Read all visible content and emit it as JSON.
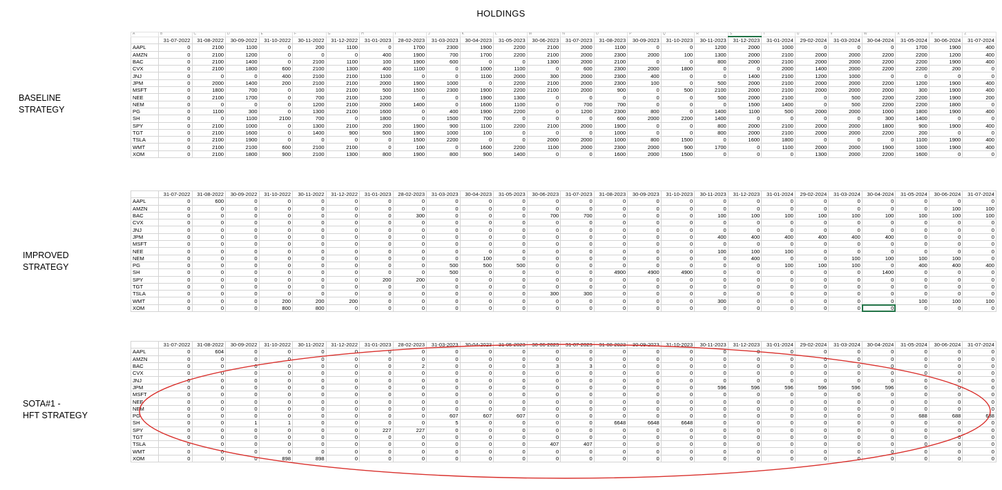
{
  "page_title": "HOLDINGS",
  "labels": {
    "baseline": [
      "BASELINE",
      "STRATEGY"
    ],
    "improved": [
      "IMPROVED",
      "STRATEGY"
    ],
    "sota": [
      "SOTA#1 -",
      "HFT STRATEGY"
    ]
  },
  "dates": [
    "31-07-2022",
    "31-08-2022",
    "30-09-2022",
    "31-10-2022",
    "30-11-2022",
    "31-12-2022",
    "31-01-2023",
    "28-02-2023",
    "31-03-2023",
    "30-04-2023",
    "31-05-2023",
    "30-06-2023",
    "31-07-2023",
    "31-08-2023",
    "30-09-2023",
    "31-10-2023",
    "30-11-2023",
    "31-12-2023",
    "31-01-2024",
    "29-02-2024",
    "31-03-2024",
    "30-04-2024",
    "31-05-2024",
    "30-06-2024",
    "31-07-2024"
  ],
  "tickers": [
    "AAPL",
    "AMZN",
    "BAC",
    "CVX",
    "JNJ",
    "JPM",
    "MSFT",
    "NEE",
    "NEM",
    "PG",
    "SH",
    "SPY",
    "TGT",
    "TSLA",
    "WMT",
    "XOM"
  ],
  "column_letters": [
    "A",
    "B",
    "C",
    "D",
    "E",
    "F",
    "G",
    "H",
    "I",
    "J",
    "K",
    "L",
    "M",
    "N",
    "O",
    "P",
    "Q",
    "R",
    "S",
    "T",
    "U",
    "V",
    "W",
    "X",
    "Y",
    "Z"
  ],
  "tables": {
    "baseline": [
      [
        "0",
        "2100",
        "1100",
        "0",
        "200",
        "1100",
        "0",
        "1700",
        "2300",
        "1900",
        "2200",
        "2100",
        "2000",
        "1100",
        "0",
        "0",
        "1200",
        "2000",
        "1000",
        "0",
        "0",
        "0",
        "1700",
        "1900",
        "400"
      ],
      [
        "0",
        "2100",
        "1200",
        "0",
        "0",
        "0",
        "400",
        "1900",
        "700",
        "1700",
        "2200",
        "2100",
        "2000",
        "2300",
        "2000",
        "100",
        "1300",
        "2000",
        "2100",
        "2000",
        "2000",
        "2200",
        "2200",
        "1200",
        "400"
      ],
      [
        "0",
        "2100",
        "1400",
        "0",
        "2100",
        "1100",
        "100",
        "1900",
        "600",
        "0",
        "0",
        "1300",
        "2000",
        "2100",
        "0",
        "0",
        "800",
        "2000",
        "2100",
        "2000",
        "2000",
        "2200",
        "2200",
        "1900",
        "400"
      ],
      [
        "0",
        "2100",
        "1800",
        "600",
        "2100",
        "1300",
        "400",
        "1100",
        "0",
        "1000",
        "1100",
        "0",
        "600",
        "2300",
        "2000",
        "1800",
        "0",
        "0",
        "2000",
        "1400",
        "2000",
        "2200",
        "2200",
        "200",
        "0"
      ],
      [
        "0",
        "0",
        "0",
        "400",
        "2100",
        "2100",
        "1100",
        "0",
        "0",
        "1100",
        "2000",
        "300",
        "2000",
        "2300",
        "400",
        "0",
        "0",
        "1400",
        "2100",
        "1200",
        "1000",
        "0",
        "0",
        "0",
        "0"
      ],
      [
        "0",
        "2000",
        "1400",
        "200",
        "2100",
        "2100",
        "2000",
        "1900",
        "1000",
        "0",
        "2200",
        "2100",
        "2000",
        "2300",
        "100",
        "0",
        "500",
        "2000",
        "2100",
        "2000",
        "2000",
        "2200",
        "1200",
        "1900",
        "400"
      ],
      [
        "0",
        "1800",
        "700",
        "0",
        "100",
        "2100",
        "500",
        "1500",
        "2300",
        "1900",
        "2200",
        "2100",
        "2000",
        "900",
        "0",
        "500",
        "2100",
        "2000",
        "2100",
        "2000",
        "2000",
        "2000",
        "300",
        "1900",
        "400"
      ],
      [
        "0",
        "2100",
        "1700",
        "0",
        "700",
        "2100",
        "1200",
        "0",
        "0",
        "1900",
        "1300",
        "0",
        "0",
        "0",
        "0",
        "0",
        "500",
        "2000",
        "2100",
        "0",
        "500",
        "2200",
        "2200",
        "1900",
        "200"
      ],
      [
        "0",
        "0",
        "0",
        "0",
        "1200",
        "2100",
        "2000",
        "1400",
        "0",
        "1600",
        "1100",
        "0",
        "700",
        "700",
        "0",
        "0",
        "0",
        "1500",
        "1400",
        "0",
        "500",
        "2200",
        "2200",
        "1800",
        "0"
      ],
      [
        "0",
        "1100",
        "300",
        "0",
        "1300",
        "2100",
        "1600",
        "0",
        "400",
        "1900",
        "2200",
        "0",
        "1200",
        "2300",
        "800",
        "0",
        "1400",
        "1100",
        "500",
        "2000",
        "2000",
        "1000",
        "1800",
        "1900",
        "400"
      ],
      [
        "0",
        "0",
        "1100",
        "2100",
        "700",
        "0",
        "1800",
        "0",
        "1500",
        "700",
        "0",
        "0",
        "0",
        "600",
        "2000",
        "2200",
        "1400",
        "0",
        "0",
        "0",
        "0",
        "300",
        "1400",
        "0",
        "0"
      ],
      [
        "0",
        "2100",
        "1000",
        "0",
        "1300",
        "2100",
        "200",
        "1900",
        "900",
        "1100",
        "2200",
        "2100",
        "2000",
        "1900",
        "0",
        "0",
        "800",
        "2000",
        "2100",
        "2000",
        "2000",
        "1800",
        "900",
        "1900",
        "400"
      ],
      [
        "0",
        "2100",
        "1600",
        "0",
        "1400",
        "900",
        "500",
        "1900",
        "1000",
        "100",
        "0",
        "0",
        "0",
        "1000",
        "0",
        "0",
        "800",
        "2000",
        "2100",
        "2000",
        "2000",
        "2200",
        "200",
        "0",
        "0"
      ],
      [
        "0",
        "2100",
        "1900",
        "0",
        "0",
        "0",
        "0",
        "1500",
        "2200",
        "0",
        "0",
        "2000",
        "2000",
        "1000",
        "800",
        "1500",
        "0",
        "1600",
        "1800",
        "0",
        "0",
        "0",
        "1100",
        "1900",
        "400"
      ],
      [
        "0",
        "2100",
        "2100",
        "600",
        "2100",
        "2100",
        "0",
        "100",
        "0",
        "1600",
        "2200",
        "1100",
        "2000",
        "2300",
        "2000",
        "900",
        "1700",
        "0",
        "1100",
        "2000",
        "2000",
        "1900",
        "1000",
        "1900",
        "400"
      ],
      [
        "0",
        "2100",
        "1800",
        "900",
        "2100",
        "1300",
        "800",
        "1900",
        "800",
        "900",
        "1400",
        "0",
        "0",
        "1600",
        "2000",
        "1500",
        "0",
        "0",
        "0",
        "1300",
        "2000",
        "2200",
        "1600",
        "0",
        "0"
      ]
    ],
    "improved": [
      [
        "0",
        "600",
        "0",
        "0",
        "0",
        "0",
        "0",
        "0",
        "0",
        "0",
        "0",
        "0",
        "0",
        "0",
        "0",
        "0",
        "0",
        "0",
        "0",
        "0",
        "0",
        "0",
        "0",
        "0",
        "0"
      ],
      [
        "0",
        "0",
        "0",
        "0",
        "0",
        "0",
        "0",
        "0",
        "0",
        "0",
        "0",
        "0",
        "0",
        "0",
        "0",
        "0",
        "0",
        "0",
        "0",
        "0",
        "0",
        "0",
        "0",
        "100",
        "100"
      ],
      [
        "0",
        "0",
        "0",
        "0",
        "0",
        "0",
        "0",
        "300",
        "0",
        "0",
        "0",
        "700",
        "700",
        "0",
        "0",
        "0",
        "100",
        "100",
        "100",
        "100",
        "100",
        "100",
        "100",
        "100",
        "100"
      ],
      [
        "0",
        "0",
        "0",
        "0",
        "0",
        "0",
        "0",
        "0",
        "0",
        "0",
        "0",
        "0",
        "0",
        "0",
        "0",
        "0",
        "0",
        "0",
        "0",
        "0",
        "0",
        "0",
        "0",
        "0",
        "0"
      ],
      [
        "0",
        "0",
        "0",
        "0",
        "0",
        "0",
        "0",
        "0",
        "0",
        "0",
        "0",
        "0",
        "0",
        "0",
        "0",
        "0",
        "0",
        "0",
        "0",
        "0",
        "0",
        "0",
        "0",
        "0",
        "0"
      ],
      [
        "0",
        "0",
        "0",
        "0",
        "0",
        "0",
        "0",
        "0",
        "0",
        "0",
        "0",
        "0",
        "0",
        "0",
        "0",
        "0",
        "400",
        "400",
        "400",
        "400",
        "400",
        "400",
        "0",
        "0",
        "0"
      ],
      [
        "0",
        "0",
        "0",
        "0",
        "0",
        "0",
        "0",
        "0",
        "0",
        "0",
        "0",
        "0",
        "0",
        "0",
        "0",
        "0",
        "0",
        "0",
        "0",
        "0",
        "0",
        "0",
        "0",
        "0",
        "0"
      ],
      [
        "0",
        "0",
        "0",
        "0",
        "0",
        "0",
        "0",
        "0",
        "0",
        "0",
        "0",
        "0",
        "0",
        "0",
        "0",
        "0",
        "100",
        "100",
        "100",
        "0",
        "0",
        "0",
        "0",
        "0",
        "0"
      ],
      [
        "0",
        "0",
        "0",
        "0",
        "0",
        "0",
        "0",
        "0",
        "0",
        "100",
        "0",
        "0",
        "0",
        "0",
        "0",
        "0",
        "0",
        "400",
        "0",
        "0",
        "100",
        "100",
        "100",
        "100",
        "0"
      ],
      [
        "0",
        "0",
        "0",
        "0",
        "0",
        "0",
        "0",
        "0",
        "500",
        "500",
        "500",
        "0",
        "0",
        "0",
        "0",
        "0",
        "0",
        "0",
        "100",
        "100",
        "100",
        "0",
        "400",
        "400",
        "400"
      ],
      [
        "0",
        "0",
        "0",
        "0",
        "0",
        "0",
        "0",
        "0",
        "500",
        "0",
        "0",
        "0",
        "0",
        "4900",
        "4900",
        "4900",
        "0",
        "0",
        "0",
        "0",
        "0",
        "1400",
        "0",
        "0",
        "0"
      ],
      [
        "0",
        "0",
        "0",
        "0",
        "0",
        "0",
        "200",
        "200",
        "0",
        "0",
        "0",
        "0",
        "0",
        "0",
        "0",
        "0",
        "0",
        "0",
        "0",
        "0",
        "0",
        "0",
        "0",
        "0",
        "0"
      ],
      [
        "0",
        "0",
        "0",
        "0",
        "0",
        "0",
        "0",
        "0",
        "0",
        "0",
        "0",
        "0",
        "0",
        "0",
        "0",
        "0",
        "0",
        "0",
        "0",
        "0",
        "0",
        "0",
        "0",
        "0",
        "0"
      ],
      [
        "0",
        "0",
        "0",
        "0",
        "0",
        "0",
        "0",
        "0",
        "0",
        "0",
        "0",
        "300",
        "300",
        "0",
        "0",
        "0",
        "0",
        "0",
        "0",
        "0",
        "0",
        "0",
        "0",
        "0",
        "0"
      ],
      [
        "0",
        "0",
        "0",
        "200",
        "200",
        "200",
        "0",
        "0",
        "0",
        "0",
        "0",
        "0",
        "0",
        "0",
        "0",
        "0",
        "300",
        "0",
        "0",
        "0",
        "0",
        "0",
        "100",
        "100",
        "100"
      ],
      [
        "0",
        "0",
        "0",
        "800",
        "800",
        "0",
        "0",
        "0",
        "0",
        "0",
        "0",
        "0",
        "0",
        "0",
        "0",
        "0",
        "0",
        "0",
        "0",
        "0",
        "0",
        "0",
        "0",
        "0",
        "0"
      ]
    ],
    "sota": [
      [
        "0",
        "604",
        "0",
        "0",
        "0",
        "0",
        "0",
        "0",
        "0",
        "0",
        "0",
        "0",
        "0",
        "0",
        "0",
        "0",
        "0",
        "0",
        "0",
        "0",
        "0",
        "0",
        "0",
        "0",
        "0"
      ],
      [
        "0",
        "0",
        "0",
        "0",
        "0",
        "0",
        "0",
        "0",
        "0",
        "0",
        "0",
        "0",
        "0",
        "0",
        "0",
        "0",
        "0",
        "0",
        "0",
        "0",
        "0",
        "0",
        "0",
        "0",
        "0"
      ],
      [
        "0",
        "0",
        "0",
        "0",
        "0",
        "0",
        "0",
        "2",
        "0",
        "0",
        "0",
        "3",
        "3",
        "0",
        "0",
        "0",
        "0",
        "0",
        "0",
        "0",
        "0",
        "0",
        "0",
        "0",
        "0"
      ],
      [
        "0",
        "0",
        "0",
        "0",
        "0",
        "0",
        "0",
        "0",
        "0",
        "0",
        "0",
        "0",
        "0",
        "0",
        "0",
        "0",
        "0",
        "0",
        "0",
        "0",
        "0",
        "0",
        "0",
        "0",
        "0"
      ],
      [
        "0",
        "0",
        "0",
        "0",
        "0",
        "0",
        "0",
        "0",
        "0",
        "0",
        "0",
        "0",
        "0",
        "0",
        "0",
        "0",
        "0",
        "0",
        "0",
        "0",
        "0",
        "0",
        "0",
        "0",
        "0"
      ],
      [
        "0",
        "0",
        "0",
        "0",
        "0",
        "0",
        "0",
        "0",
        "0",
        "0",
        "0",
        "0",
        "0",
        "0",
        "0",
        "0",
        "596",
        "596",
        "596",
        "596",
        "596",
        "596",
        "0",
        "0",
        "0"
      ],
      [
        "0",
        "0",
        "0",
        "0",
        "0",
        "0",
        "0",
        "0",
        "0",
        "0",
        "0",
        "0",
        "0",
        "0",
        "0",
        "0",
        "0",
        "0",
        "0",
        "0",
        "0",
        "0",
        "0",
        "0",
        "0"
      ],
      [
        "0",
        "0",
        "0",
        "0",
        "0",
        "0",
        "0",
        "0",
        "0",
        "0",
        "0",
        "0",
        "0",
        "0",
        "0",
        "0",
        "0",
        "0",
        "0",
        "0",
        "0",
        "0",
        "0",
        "0",
        "0"
      ],
      [
        "0",
        "0",
        "0",
        "0",
        "0",
        "0",
        "0",
        "0",
        "0",
        "0",
        "0",
        "0",
        "0",
        "0",
        "0",
        "0",
        "0",
        "0",
        "0",
        "0",
        "0",
        "0",
        "0",
        "0",
        "0"
      ],
      [
        "0",
        "0",
        "0",
        "0",
        "0",
        "0",
        "0",
        "0",
        "607",
        "607",
        "607",
        "0",
        "0",
        "0",
        "0",
        "0",
        "0",
        "0",
        "0",
        "0",
        "0",
        "0",
        "688",
        "688",
        "688"
      ],
      [
        "0",
        "0",
        "1",
        "1",
        "0",
        "0",
        "0",
        "0",
        "5",
        "0",
        "0",
        "0",
        "0",
        "6648",
        "6648",
        "6648",
        "0",
        "0",
        "0",
        "0",
        "0",
        "0",
        "0",
        "0",
        "0"
      ],
      [
        "0",
        "0",
        "0",
        "0",
        "0",
        "0",
        "227",
        "227",
        "0",
        "0",
        "0",
        "0",
        "0",
        "0",
        "0",
        "0",
        "0",
        "0",
        "0",
        "0",
        "0",
        "0",
        "0",
        "0",
        "0"
      ],
      [
        "0",
        "0",
        "0",
        "0",
        "0",
        "0",
        "0",
        "0",
        "0",
        "0",
        "0",
        "0",
        "0",
        "0",
        "0",
        "0",
        "0",
        "0",
        "0",
        "0",
        "0",
        "0",
        "0",
        "0",
        "0"
      ],
      [
        "0",
        "0",
        "0",
        "0",
        "0",
        "0",
        "0",
        "0",
        "0",
        "0",
        "0",
        "407",
        "407",
        "0",
        "0",
        "0",
        "0",
        "0",
        "0",
        "0",
        "0",
        "0",
        "0",
        "0",
        "0"
      ],
      [
        "0",
        "0",
        "0",
        "0",
        "0",
        "0",
        "0",
        "0",
        "0",
        "0",
        "0",
        "0",
        "0",
        "0",
        "0",
        "0",
        "0",
        "0",
        "0",
        "0",
        "0",
        "0",
        "0",
        "0",
        "0"
      ],
      [
        "0",
        "0",
        "0",
        "898",
        "898",
        "0",
        "0",
        "0",
        "0",
        "0",
        "0",
        "0",
        "0",
        "0",
        "0",
        "0",
        "0",
        "0",
        "0",
        "0",
        "0",
        "0",
        "0",
        "0",
        "0"
      ]
    ]
  },
  "colors": {
    "grid": "#d4d4d4",
    "selection": "#217346",
    "ellipse": "#d9302c"
  }
}
